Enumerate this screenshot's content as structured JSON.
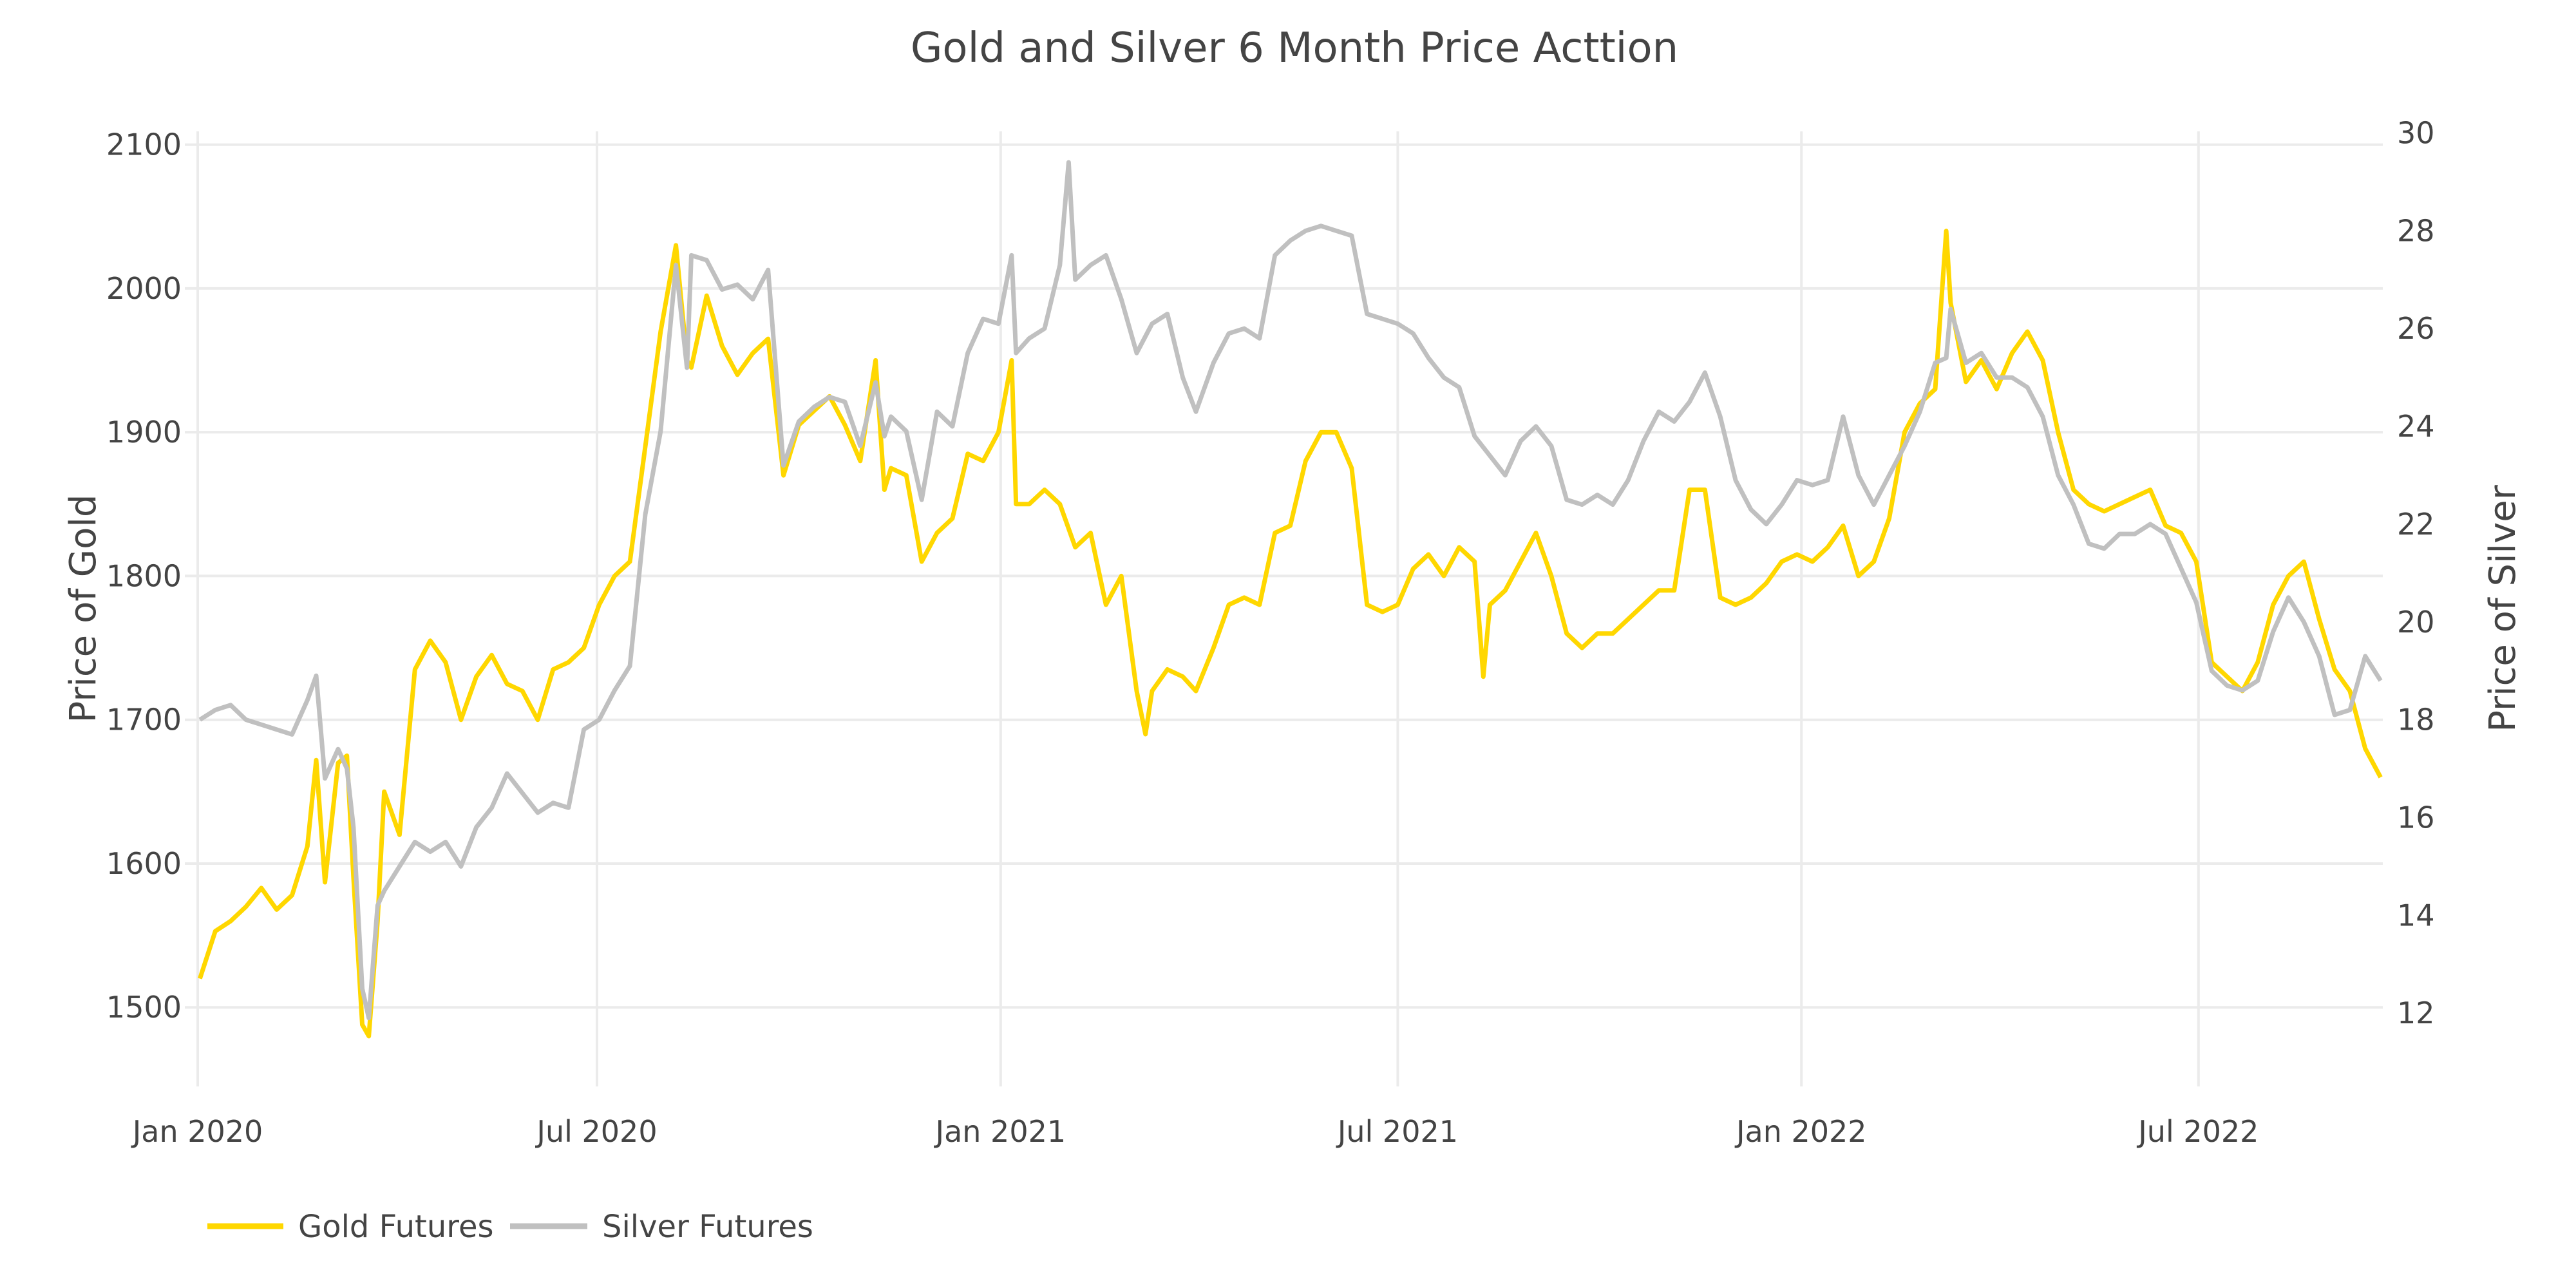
{
  "chart_data": {
    "type": "line",
    "title": "Gold and Silver 6 Month Price Acttion",
    "xlabel": "",
    "ylabel": "Price of Gold",
    "ylabel_right": "Price of Silver",
    "xlim": [
      "2020-01-01",
      "2022-09-23"
    ],
    "ylim": [
      1445,
      2120
    ],
    "ylim_right": [
      10.5,
      30.35
    ],
    "x_ticks": [
      {
        "date": "2020-01-01",
        "label": "Jan 2020"
      },
      {
        "date": "2020-07-01",
        "label": "Jul 2020"
      },
      {
        "date": "2021-01-01",
        "label": "Jan 2021"
      },
      {
        "date": "2021-07-01",
        "label": "Jul 2021"
      },
      {
        "date": "2022-01-01",
        "label": "Jan 2022"
      },
      {
        "date": "2022-07-01",
        "label": "Jul 2022"
      }
    ],
    "y_ticks": [
      1500,
      1600,
      1700,
      1800,
      1900,
      2000,
      2100
    ],
    "y_ticks_right": [
      12,
      14,
      16,
      18,
      20,
      22,
      24,
      26,
      28,
      30
    ],
    "grid": true,
    "legend_position": "bottom-left",
    "series": [
      {
        "name": "Gold Futures",
        "axis": "left",
        "color": "#FFD700",
        "x": [
          "2020-01-02",
          "2020-01-09",
          "2020-01-16",
          "2020-01-23",
          "2020-01-30",
          "2020-02-06",
          "2020-02-13",
          "2020-02-20",
          "2020-02-24",
          "2020-02-28",
          "2020-03-05",
          "2020-03-09",
          "2020-03-12",
          "2020-03-16",
          "2020-03-19",
          "2020-03-23",
          "2020-03-26",
          "2020-04-02",
          "2020-04-09",
          "2020-04-16",
          "2020-04-23",
          "2020-04-30",
          "2020-05-07",
          "2020-05-14",
          "2020-05-21",
          "2020-05-28",
          "2020-06-04",
          "2020-06-11",
          "2020-06-18",
          "2020-06-25",
          "2020-07-02",
          "2020-07-09",
          "2020-07-16",
          "2020-07-23",
          "2020-07-30",
          "2020-08-06",
          "2020-08-11",
          "2020-08-13",
          "2020-08-20",
          "2020-08-27",
          "2020-09-03",
          "2020-09-10",
          "2020-09-17",
          "2020-09-24",
          "2020-10-01",
          "2020-10-08",
          "2020-10-15",
          "2020-10-22",
          "2020-10-29",
          "2020-11-05",
          "2020-11-09",
          "2020-11-12",
          "2020-11-19",
          "2020-11-26",
          "2020-12-03",
          "2020-12-10",
          "2020-12-17",
          "2020-12-24",
          "2020-12-31",
          "2021-01-06",
          "2021-01-08",
          "2021-01-14",
          "2021-01-21",
          "2021-01-28",
          "2021-02-04",
          "2021-02-11",
          "2021-02-18",
          "2021-02-25",
          "2021-03-04",
          "2021-03-08",
          "2021-03-11",
          "2021-03-18",
          "2021-03-25",
          "2021-03-31",
          "2021-04-08",
          "2021-04-15",
          "2021-04-22",
          "2021-04-29",
          "2021-05-06",
          "2021-05-13",
          "2021-05-20",
          "2021-05-27",
          "2021-06-03",
          "2021-06-10",
          "2021-06-17",
          "2021-06-24",
          "2021-07-01",
          "2021-07-08",
          "2021-07-15",
          "2021-07-22",
          "2021-07-29",
          "2021-08-05",
          "2021-08-09",
          "2021-08-12",
          "2021-08-19",
          "2021-08-26",
          "2021-09-02",
          "2021-09-09",
          "2021-09-16",
          "2021-09-23",
          "2021-09-30",
          "2021-10-07",
          "2021-10-14",
          "2021-10-21",
          "2021-10-28",
          "2021-11-04",
          "2021-11-11",
          "2021-11-18",
          "2021-11-25",
          "2021-12-02",
          "2021-12-09",
          "2021-12-16",
          "2021-12-23",
          "2021-12-30",
          "2022-01-06",
          "2022-01-13",
          "2022-01-20",
          "2022-01-27",
          "2022-02-03",
          "2022-02-10",
          "2022-02-17",
          "2022-02-24",
          "2022-03-03",
          "2022-03-08",
          "2022-03-10",
          "2022-03-17",
          "2022-03-24",
          "2022-03-31",
          "2022-04-07",
          "2022-04-14",
          "2022-04-21",
          "2022-04-28",
          "2022-05-05",
          "2022-05-12",
          "2022-05-19",
          "2022-05-26",
          "2022-06-02",
          "2022-06-09",
          "2022-06-16",
          "2022-06-23",
          "2022-06-30",
          "2022-07-07",
          "2022-07-14",
          "2022-07-21",
          "2022-07-28",
          "2022-08-04",
          "2022-08-11",
          "2022-08-18",
          "2022-08-25",
          "2022-09-01",
          "2022-09-08",
          "2022-09-15",
          "2022-09-22"
        ],
        "values": [
          1520,
          1553,
          1560,
          1570,
          1583,
          1568,
          1578,
          1612,
          1672,
          1587,
          1670,
          1675,
          1590,
          1488,
          1480,
          1560,
          1650,
          1620,
          1735,
          1755,
          1740,
          1700,
          1730,
          1745,
          1725,
          1720,
          1700,
          1735,
          1740,
          1750,
          1780,
          1800,
          1810,
          1890,
          1970,
          2030,
          1950,
          1945,
          1995,
          1960,
          1940,
          1955,
          1965,
          1870,
          1905,
          1915,
          1925,
          1905,
          1880,
          1950,
          1860,
          1875,
          1870,
          1810,
          1830,
          1840,
          1885,
          1880,
          1900,
          1950,
          1850,
          1850,
          1860,
          1850,
          1820,
          1830,
          1780,
          1800,
          1720,
          1690,
          1720,
          1735,
          1730,
          1720,
          1750,
          1780,
          1785,
          1780,
          1830,
          1835,
          1880,
          1900,
          1900,
          1875,
          1780,
          1775,
          1780,
          1805,
          1815,
          1800,
          1820,
          1810,
          1730,
          1780,
          1790,
          1810,
          1830,
          1800,
          1760,
          1750,
          1760,
          1760,
          1770,
          1780,
          1790,
          1790,
          1860,
          1860,
          1785,
          1780,
          1785,
          1795,
          1810,
          1815,
          1810,
          1820,
          1835,
          1800,
          1810,
          1840,
          1900,
          1920,
          1930,
          2040,
          1990,
          1935,
          1950,
          1930,
          1955,
          1970,
          1950,
          1900,
          1860,
          1850,
          1845,
          1850,
          1855,
          1860,
          1835,
          1830,
          1810,
          1740,
          1730,
          1720,
          1740,
          1780,
          1800,
          1810,
          1770,
          1735,
          1720,
          1680,
          1660
        ]
      },
      {
        "name": "Silver Futures",
        "axis": "right",
        "color": "#C0C0C0",
        "x": [
          "2020-01-02",
          "2020-01-09",
          "2020-01-16",
          "2020-01-23",
          "2020-01-30",
          "2020-02-06",
          "2020-02-13",
          "2020-02-20",
          "2020-02-24",
          "2020-02-28",
          "2020-03-05",
          "2020-03-09",
          "2020-03-12",
          "2020-03-16",
          "2020-03-19",
          "2020-03-23",
          "2020-03-26",
          "2020-04-02",
          "2020-04-09",
          "2020-04-16",
          "2020-04-23",
          "2020-04-30",
          "2020-05-07",
          "2020-05-14",
          "2020-05-21",
          "2020-05-28",
          "2020-06-04",
          "2020-06-11",
          "2020-06-18",
          "2020-06-25",
          "2020-07-02",
          "2020-07-09",
          "2020-07-16",
          "2020-07-23",
          "2020-07-30",
          "2020-08-06",
          "2020-08-11",
          "2020-08-13",
          "2020-08-20",
          "2020-08-27",
          "2020-09-03",
          "2020-09-10",
          "2020-09-17",
          "2020-09-24",
          "2020-10-01",
          "2020-10-08",
          "2020-10-15",
          "2020-10-22",
          "2020-10-29",
          "2020-11-05",
          "2020-11-09",
          "2020-11-12",
          "2020-11-19",
          "2020-11-26",
          "2020-12-03",
          "2020-12-10",
          "2020-12-17",
          "2020-12-24",
          "2020-12-31",
          "2021-01-06",
          "2021-01-08",
          "2021-01-14",
          "2021-01-21",
          "2021-01-28",
          "2021-02-01",
          "2021-02-04",
          "2021-02-11",
          "2021-02-18",
          "2021-02-25",
          "2021-03-04",
          "2021-03-11",
          "2021-03-18",
          "2021-03-25",
          "2021-03-31",
          "2021-04-08",
          "2021-04-15",
          "2021-04-22",
          "2021-04-29",
          "2021-05-06",
          "2021-05-13",
          "2021-05-20",
          "2021-05-27",
          "2021-06-03",
          "2021-06-10",
          "2021-06-17",
          "2021-06-24",
          "2021-07-01",
          "2021-07-08",
          "2021-07-15",
          "2021-07-22",
          "2021-07-29",
          "2021-08-05",
          "2021-08-12",
          "2021-08-19",
          "2021-08-26",
          "2021-09-02",
          "2021-09-09",
          "2021-09-16",
          "2021-09-23",
          "2021-09-30",
          "2021-10-07",
          "2021-10-14",
          "2021-10-21",
          "2021-10-28",
          "2021-11-04",
          "2021-11-11",
          "2021-11-18",
          "2021-11-25",
          "2021-12-02",
          "2021-12-09",
          "2021-12-16",
          "2021-12-23",
          "2021-12-30",
          "2022-01-06",
          "2022-01-13",
          "2022-01-20",
          "2022-01-27",
          "2022-02-03",
          "2022-02-10",
          "2022-02-17",
          "2022-02-24",
          "2022-03-03",
          "2022-03-08",
          "2022-03-10",
          "2022-03-17",
          "2022-03-24",
          "2022-03-31",
          "2022-04-07",
          "2022-04-14",
          "2022-04-21",
          "2022-04-28",
          "2022-05-05",
          "2022-05-12",
          "2022-05-19",
          "2022-05-26",
          "2022-06-02",
          "2022-06-09",
          "2022-06-16",
          "2022-06-23",
          "2022-06-30",
          "2022-07-07",
          "2022-07-14",
          "2022-07-21",
          "2022-07-28",
          "2022-08-04",
          "2022-08-11",
          "2022-08-18",
          "2022-08-25",
          "2022-09-01",
          "2022-09-08",
          "2022-09-15",
          "2022-09-22"
        ],
        "values": [
          18.0,
          18.2,
          18.3,
          18.0,
          17.9,
          17.8,
          17.7,
          18.4,
          18.9,
          16.8,
          17.4,
          17.0,
          15.8,
          12.5,
          11.9,
          14.2,
          14.5,
          15.0,
          15.5,
          15.3,
          15.5,
          15.0,
          15.8,
          16.2,
          16.9,
          16.5,
          16.1,
          16.3,
          16.2,
          17.8,
          18.0,
          18.6,
          19.1,
          22.2,
          23.9,
          27.3,
          25.2,
          27.5,
          27.4,
          26.8,
          26.9,
          26.6,
          27.2,
          23.2,
          24.1,
          24.4,
          24.6,
          24.5,
          23.6,
          24.9,
          23.8,
          24.2,
          23.9,
          22.5,
          24.3,
          24.0,
          25.5,
          26.2,
          26.1,
          27.5,
          25.5,
          25.8,
          26.0,
          27.3,
          29.4,
          27.0,
          27.3,
          27.5,
          26.6,
          25.5,
          26.1,
          26.3,
          25.0,
          24.3,
          25.3,
          25.9,
          26.0,
          25.8,
          27.5,
          27.8,
          28.0,
          28.1,
          28.0,
          27.9,
          26.3,
          26.2,
          26.1,
          25.9,
          25.4,
          25.0,
          24.8,
          23.8,
          23.4,
          23.0,
          23.7,
          24.0,
          23.6,
          22.5,
          22.4,
          22.6,
          22.4,
          22.9,
          23.7,
          24.3,
          24.1,
          24.5,
          25.1,
          24.2,
          22.9,
          22.3,
          22.0,
          22.4,
          22.9,
          22.8,
          22.9,
          24.2,
          23.0,
          22.4,
          23.0,
          23.6,
          24.3,
          25.3,
          25.4,
          26.4,
          25.3,
          25.5,
          25.0,
          25.0,
          24.8,
          24.2,
          23.0,
          22.4,
          21.6,
          21.5,
          21.8,
          21.8,
          22.0,
          21.8,
          21.1,
          20.4,
          19.0,
          18.7,
          18.6,
          18.8,
          19.8,
          20.5,
          20.0,
          19.3,
          18.1,
          18.2,
          19.3,
          18.8
        ]
      }
    ]
  },
  "legend": {
    "items": [
      {
        "label": "Gold Futures",
        "color": "#FFD700"
      },
      {
        "label": "Silver Futures",
        "color": "#C0C0C0"
      }
    ]
  }
}
